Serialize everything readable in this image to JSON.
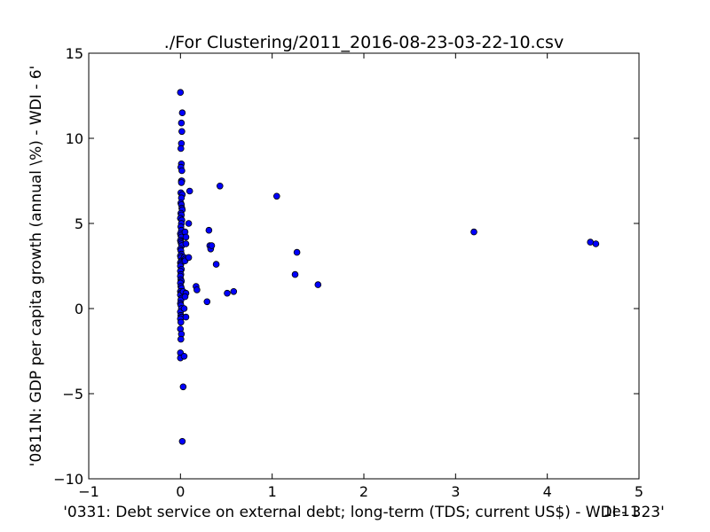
{
  "chart_data": {
    "type": "scatter",
    "title": "./For Clustering/2011_2016-08-23-03-22-10.csv",
    "xlabel": "'0331: Debt service on external debt; long-term  (TDS; current US$) - WDI - 323'",
    "ylabel": "'0811N: GDP per capita growth  (annual \\%) - WDI - 6'",
    "x_offset_label": "1e11",
    "xlim": [
      -1,
      5
    ],
    "ylim": [
      -10,
      15
    ],
    "xticks": [
      -1,
      0,
      1,
      2,
      3,
      4,
      5
    ],
    "yticks": [
      -10,
      -5,
      0,
      5,
      10,
      15
    ],
    "xtick_labels": [
      "−1",
      "0",
      "1",
      "2",
      "3",
      "4",
      "5"
    ],
    "ytick_labels": [
      "−10",
      "−5",
      "0",
      "5",
      "10",
      "15"
    ],
    "grid": false,
    "marker_color": "#0000ff",
    "x": [
      0.0,
      0.02,
      0.01,
      0.015,
      0.01,
      0.005,
      0.01,
      0.005,
      0.015,
      0.01,
      0.015,
      0.01,
      0.005,
      0.02,
      0.01,
      0.005,
      0.01,
      0.015,
      0.02,
      0.005,
      0.01,
      0.0,
      0.015,
      0.01,
      0.005,
      0.01,
      0.0,
      0.005,
      0.01,
      0.0,
      0.005,
      0.01,
      0.015,
      0.0,
      0.005,
      0.01,
      0.0,
      0.005,
      0.01,
      0.0,
      0.005,
      0.0,
      0.01,
      0.0,
      0.005,
      0.0,
      0.005,
      0.01,
      0.0,
      0.005,
      0.01,
      0.0,
      0.005,
      0.0,
      0.01,
      0.005,
      0.0,
      0.005,
      0.01,
      0.0,
      0.005,
      0.01,
      0.0,
      0.005,
      0.0,
      0.01,
      0.005,
      0.0,
      0.0,
      0.02,
      0.03,
      0.04,
      0.05,
      0.06,
      0.06,
      0.04,
      0.05,
      0.03,
      0.06,
      0.05,
      0.04,
      0.06,
      0.05,
      0.1,
      0.09,
      0.09,
      0.17,
      0.18,
      0.29,
      0.31,
      0.32,
      0.33,
      0.34,
      0.39,
      0.43,
      0.51,
      0.58,
      1.05,
      1.25,
      1.27,
      1.5,
      3.2,
      4.47,
      4.53
    ],
    "y": [
      12.7,
      11.5,
      10.9,
      10.4,
      9.7,
      9.4,
      8.5,
      8.3,
      8.1,
      7.5,
      7.5,
      7.4,
      6.8,
      6.7,
      6.5,
      6.2,
      6.1,
      5.9,
      5.8,
      5.6,
      5.5,
      5.3,
      5.2,
      5.0,
      4.8,
      4.6,
      4.4,
      4.3,
      4.2,
      4.0,
      3.9,
      3.8,
      3.7,
      3.5,
      3.4,
      3.2,
      3.1,
      3.0,
      2.8,
      2.7,
      2.6,
      2.5,
      2.3,
      2.2,
      2.0,
      1.9,
      1.7,
      1.6,
      1.5,
      1.3,
      1.2,
      1.0,
      0.9,
      0.8,
      0.6,
      0.5,
      0.3,
      0.2,
      0.0,
      -0.2,
      -0.4,
      -0.5,
      -0.6,
      -0.8,
      -1.2,
      -1.5,
      -1.8,
      -2.6,
      -2.9,
      -7.8,
      -4.6,
      -2.8,
      4.5,
      4.2,
      3.8,
      3.0,
      2.9,
      1.0,
      0.9,
      0.7,
      0.0,
      -0.5,
      2.8,
      6.9,
      5.0,
      3.0,
      1.3,
      1.1,
      0.4,
      4.6,
      3.7,
      3.5,
      3.7,
      2.6,
      7.2,
      0.9,
      1.0,
      6.6,
      2.0,
      3.3,
      1.4,
      4.5,
      3.9,
      3.8
    ]
  }
}
